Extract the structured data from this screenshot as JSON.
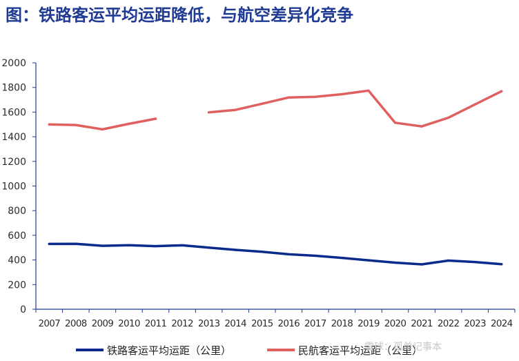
{
  "title": "图：铁路客运平均运距降低，与航空差异化竞争",
  "watermark": "雪球：孤单记事本",
  "colors": {
    "title": "#1f3a93",
    "rail": "#0a2b8c",
    "air": "#e06060",
    "axis": "#1f3a93"
  },
  "chart_data": {
    "type": "line",
    "categories": [
      "2007",
      "2008",
      "2009",
      "2010",
      "2011",
      "2012",
      "2013",
      "2014",
      "2015",
      "2016",
      "2017",
      "2018",
      "2019",
      "2020",
      "2021",
      "2022",
      "2023",
      "2024"
    ],
    "ylim": [
      0,
      2000
    ],
    "yticks": [
      0,
      200,
      400,
      600,
      800,
      1000,
      1200,
      1400,
      1600,
      1800,
      2000
    ],
    "grid": false,
    "legend_position": "bottom",
    "xlabel": "",
    "ylabel": "",
    "series": [
      {
        "name": "铁路客运平均运距（公里）",
        "color": "#0a2b8c",
        "values": [
          530,
          531,
          515,
          520,
          512,
          519,
          500,
          482,
          466,
          446,
          434,
          417,
          397,
          378,
          364,
          395,
          383,
          366
        ]
      },
      {
        "name": "民航客运平均运距（公里）",
        "color": "#e06060",
        "values": [
          1500,
          1495,
          1460,
          1505,
          1546,
          null,
          1598,
          1618,
          1668,
          1719,
          1724,
          1745,
          1774,
          1514,
          1484,
          1554,
          1662,
          1769
        ]
      }
    ]
  }
}
